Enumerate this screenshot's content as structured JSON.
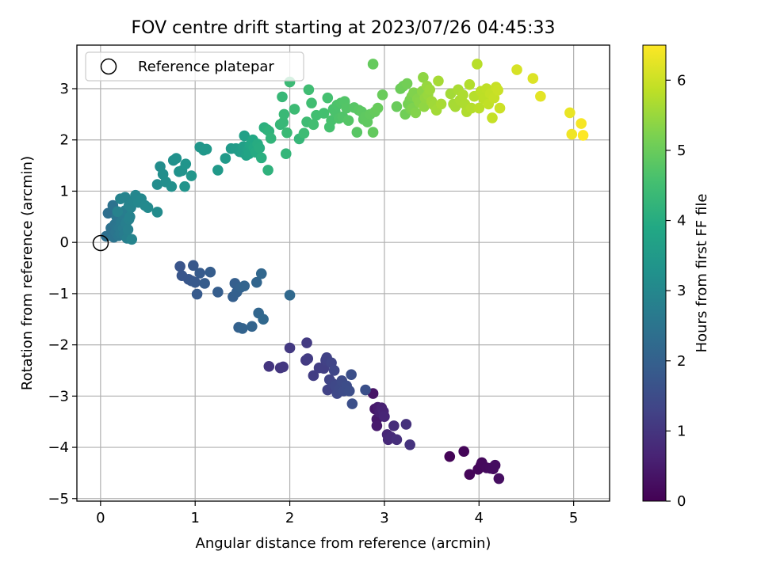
{
  "chart_data": {
    "type": "scatter",
    "title": "FOV centre drift starting at 2023/07/26 04:45:33",
    "xlabel": "Angular distance from reference (arcmin)",
    "ylabel": "Rotation from reference (arcmin)",
    "xlim": [
      -0.25,
      5.38
    ],
    "ylim": [
      -5.05,
      3.85
    ],
    "xticks": [
      0,
      1,
      2,
      3,
      4,
      5
    ],
    "yticks": [
      -5,
      -4,
      -3,
      -2,
      -1,
      0,
      1,
      2,
      3
    ],
    "grid": true,
    "legend": {
      "placement": "upper-left",
      "entries": [
        "Reference platepar"
      ]
    },
    "reference_point": {
      "x": 0,
      "y": 0
    },
    "colorbar": {
      "label": "Hours from first FF file",
      "min": 0,
      "max": 6.5,
      "ticks": [
        0,
        1,
        2,
        3,
        4,
        5,
        6
      ],
      "colormap": "viridis"
    },
    "point_series": [
      {
        "h0": 0.05,
        "h1": 0.25,
        "pts": [
          [
            3.69,
            -4.18
          ],
          [
            3.84,
            -4.08
          ],
          [
            3.9,
            -4.53
          ],
          [
            3.99,
            -4.43
          ],
          [
            4.02,
            -4.35
          ],
          [
            4.03,
            -4.3
          ],
          [
            4.08,
            -4.4
          ],
          [
            4.12,
            -4.41
          ],
          [
            4.15,
            -4.42
          ],
          [
            4.17,
            -4.35
          ],
          [
            4.21,
            -4.61
          ]
        ]
      },
      {
        "h0": 0.35,
        "h1": 0.95,
        "pts": [
          [
            2.88,
            -2.95
          ],
          [
            2.9,
            -3.25
          ],
          [
            2.92,
            -3.45
          ],
          [
            2.92,
            -3.58
          ],
          [
            2.93,
            -3.22
          ],
          [
            2.95,
            -3.32
          ],
          [
            2.97,
            -3.23
          ],
          [
            2.99,
            -3.3
          ],
          [
            3.0,
            -3.4
          ],
          [
            3.03,
            -3.75
          ],
          [
            3.04,
            -3.85
          ],
          [
            3.07,
            -3.8
          ],
          [
            3.1,
            -3.58
          ],
          [
            3.13,
            -3.85
          ],
          [
            3.23,
            -3.55
          ],
          [
            3.27,
            -3.95
          ]
        ]
      },
      {
        "h0": 1.0,
        "h1": 1.6,
        "pts": [
          [
            1.78,
            -2.42
          ],
          [
            1.9,
            -2.45
          ],
          [
            1.93,
            -2.43
          ],
          [
            2.0,
            -2.06
          ],
          [
            2.17,
            -2.3
          ],
          [
            2.18,
            -1.96
          ],
          [
            2.19,
            -2.27
          ],
          [
            2.25,
            -2.6
          ],
          [
            2.31,
            -2.45
          ],
          [
            2.36,
            -2.46
          ],
          [
            2.38,
            -2.3
          ],
          [
            2.39,
            -2.25
          ],
          [
            2.4,
            -2.88
          ],
          [
            2.42,
            -2.68
          ],
          [
            2.44,
            -2.35
          ],
          [
            2.45,
            -2.75
          ],
          [
            2.47,
            -2.5
          ],
          [
            2.48,
            -2.8
          ],
          [
            2.5,
            -2.95
          ],
          [
            2.53,
            -2.85
          ],
          [
            2.55,
            -2.7
          ],
          [
            2.57,
            -2.9
          ],
          [
            2.6,
            -2.8
          ],
          [
            2.63,
            -2.9
          ],
          [
            2.65,
            -2.58
          ],
          [
            2.66,
            -3.15
          ],
          [
            2.8,
            -2.88
          ]
        ]
      },
      {
        "h0": 1.7,
        "h1": 2.2,
        "pts": [
          [
            0.84,
            -0.47
          ],
          [
            0.86,
            -0.65
          ],
          [
            0.93,
            -0.72
          ],
          [
            0.96,
            -0.75
          ],
          [
            0.98,
            -0.45
          ],
          [
            1.0,
            -0.78
          ],
          [
            1.02,
            -1.01
          ],
          [
            1.05,
            -0.6
          ],
          [
            1.1,
            -0.8
          ],
          [
            1.16,
            -0.58
          ],
          [
            1.24,
            -0.97
          ],
          [
            1.4,
            -1.06
          ],
          [
            1.42,
            -0.8
          ],
          [
            1.44,
            -0.97
          ],
          [
            1.46,
            -1.66
          ],
          [
            1.48,
            -0.88
          ],
          [
            1.5,
            -1.68
          ],
          [
            1.52,
            -0.85
          ],
          [
            1.6,
            -1.64
          ],
          [
            1.65,
            -0.78
          ],
          [
            1.67,
            -1.38
          ],
          [
            1.7,
            -0.61
          ],
          [
            1.72,
            -1.5
          ],
          [
            2.0,
            -1.03
          ]
        ]
      },
      {
        "h0": 2.35,
        "h1": 2.9,
        "pts": [
          [
            0.06,
            0.12
          ],
          [
            0.08,
            0.57
          ],
          [
            0.1,
            0.15
          ],
          [
            0.11,
            0.28
          ],
          [
            0.13,
            0.72
          ],
          [
            0.14,
            0.1
          ],
          [
            0.15,
            0.35
          ],
          [
            0.16,
            0.2
          ],
          [
            0.17,
            0.5
          ],
          [
            0.18,
            0.3
          ],
          [
            0.19,
            0.13
          ],
          [
            0.2,
            0.28
          ],
          [
            0.21,
            0.18
          ],
          [
            0.22,
            0.4
          ],
          [
            0.23,
            0.55
          ],
          [
            0.24,
            0.28
          ],
          [
            0.25,
            0.16
          ],
          [
            0.26,
            0.62
          ],
          [
            0.27,
            0.38
          ],
          [
            0.28,
            0.08
          ],
          [
            0.29,
            0.25
          ],
          [
            0.3,
            0.45
          ],
          [
            0.31,
            0.5
          ],
          [
            0.32,
            0.68
          ],
          [
            0.33,
            0.06
          ]
        ]
      },
      {
        "h0": 2.85,
        "h1": 3.5,
        "pts": [
          [
            0.18,
            0.6
          ],
          [
            0.21,
            0.85
          ],
          [
            0.26,
            0.88
          ],
          [
            0.3,
            0.72
          ],
          [
            0.35,
            0.8
          ],
          [
            0.37,
            0.92
          ],
          [
            0.4,
            0.78
          ],
          [
            0.43,
            0.85
          ],
          [
            0.47,
            0.72
          ],
          [
            0.5,
            0.68
          ],
          [
            0.6,
            0.59
          ],
          [
            0.6,
            1.13
          ],
          [
            0.63,
            1.48
          ],
          [
            0.66,
            1.33
          ],
          [
            0.69,
            1.18
          ],
          [
            0.75,
            1.09
          ],
          [
            0.77,
            1.6
          ],
          [
            0.8,
            1.64
          ],
          [
            0.83,
            1.38
          ],
          [
            0.86,
            1.4
          ],
          [
            0.89,
            1.09
          ],
          [
            0.9,
            1.53
          ],
          [
            0.96,
            1.3
          ],
          [
            1.05,
            1.86
          ],
          [
            1.09,
            1.8
          ],
          [
            1.12,
            1.82
          ],
          [
            1.24,
            1.41
          ],
          [
            1.32,
            1.64
          ]
        ]
      },
      {
        "h0": 3.5,
        "h1": 4.3,
        "pts": [
          [
            1.38,
            1.83
          ],
          [
            1.43,
            1.83
          ],
          [
            1.47,
            1.77
          ],
          [
            1.5,
            1.76
          ],
          [
            1.51,
            1.87
          ],
          [
            1.52,
            2.08
          ],
          [
            1.54,
            1.7
          ],
          [
            1.56,
            1.8
          ],
          [
            1.57,
            1.73
          ],
          [
            1.58,
            1.9
          ],
          [
            1.6,
            1.95
          ],
          [
            1.61,
            2.0
          ],
          [
            1.62,
            1.85
          ],
          [
            1.64,
            1.76
          ],
          [
            1.66,
            1.92
          ],
          [
            1.68,
            1.84
          ],
          [
            1.7,
            1.65
          ],
          [
            1.73,
            2.24
          ],
          [
            1.76,
            2.2
          ],
          [
            1.77,
            1.41
          ],
          [
            1.78,
            2.17
          ],
          [
            1.8,
            2.03
          ],
          [
            1.96,
            1.73
          ],
          [
            2.1,
            2.02
          ]
        ]
      },
      {
        "h0": 4.3,
        "h1": 5.0,
        "pts": [
          [
            1.9,
            2.3
          ],
          [
            1.92,
            2.84
          ],
          [
            1.93,
            2.34
          ],
          [
            1.94,
            2.5
          ],
          [
            1.97,
            2.14
          ],
          [
            2.0,
            3.13
          ],
          [
            2.05,
            2.6
          ],
          [
            2.15,
            2.13
          ],
          [
            2.18,
            2.35
          ],
          [
            2.2,
            2.98
          ],
          [
            2.23,
            2.72
          ],
          [
            2.25,
            2.3
          ],
          [
            2.28,
            2.48
          ],
          [
            2.36,
            2.52
          ],
          [
            2.4,
            2.82
          ],
          [
            2.42,
            2.25
          ],
          [
            2.44,
            2.38
          ],
          [
            2.46,
            2.6
          ],
          [
            2.48,
            2.55
          ],
          [
            2.5,
            2.68
          ],
          [
            2.52,
            2.42
          ],
          [
            2.54,
            2.72
          ],
          [
            2.56,
            2.45
          ],
          [
            2.58,
            2.75
          ],
          [
            2.6,
            2.62
          ],
          [
            2.62,
            2.38
          ],
          [
            2.68,
            2.63
          ],
          [
            2.71,
            2.15
          ],
          [
            2.73,
            2.58
          ],
          [
            2.76,
            2.55
          ],
          [
            2.78,
            2.4
          ],
          [
            2.8,
            2.45
          ],
          [
            2.82,
            2.35
          ],
          [
            2.85,
            2.5
          ],
          [
            2.88,
            2.15
          ],
          [
            2.88,
            3.48
          ],
          [
            2.9,
            2.55
          ],
          [
            2.93,
            2.62
          ],
          [
            2.98,
            2.88
          ]
        ]
      },
      {
        "h0": 5.0,
        "h1": 5.65,
        "pts": [
          [
            3.13,
            2.65
          ],
          [
            3.17,
            3.0
          ],
          [
            3.2,
            3.05
          ],
          [
            3.22,
            2.5
          ],
          [
            3.24,
            3.1
          ],
          [
            3.25,
            2.7
          ],
          [
            3.27,
            2.78
          ],
          [
            3.28,
            2.6
          ],
          [
            3.29,
            2.85
          ],
          [
            3.3,
            2.62
          ],
          [
            3.31,
            2.92
          ],
          [
            3.33,
            2.53
          ],
          [
            3.35,
            2.8
          ],
          [
            3.37,
            2.73
          ],
          [
            3.4,
            2.95
          ],
          [
            3.41,
            3.22
          ],
          [
            3.42,
            2.65
          ],
          [
            3.43,
            2.82
          ],
          [
            3.45,
            3.05
          ],
          [
            3.46,
            2.88
          ],
          [
            3.48,
            2.98
          ],
          [
            3.5,
            2.75
          ],
          [
            3.52,
            2.68
          ],
          [
            3.55,
            2.58
          ],
          [
            3.57,
            3.15
          ],
          [
            3.6,
            2.7
          ]
        ]
      },
      {
        "h0": 5.6,
        "h1": 6.0,
        "pts": [
          [
            3.7,
            2.9
          ],
          [
            3.73,
            2.7
          ],
          [
            3.75,
            2.65
          ],
          [
            3.78,
            2.98
          ],
          [
            3.8,
            2.78
          ],
          [
            3.83,
            2.88
          ],
          [
            3.85,
            2.7
          ],
          [
            3.87,
            2.55
          ],
          [
            3.9,
            3.08
          ],
          [
            3.92,
            2.62
          ],
          [
            3.95,
            2.85
          ],
          [
            3.98,
            3.48
          ],
          [
            4.0,
            2.62
          ],
          [
            4.02,
            2.95
          ],
          [
            4.05,
            2.8
          ],
          [
            4.08,
            3.0
          ],
          [
            4.1,
            2.7
          ],
          [
            4.12,
            2.9
          ],
          [
            4.14,
            2.43
          ],
          [
            4.16,
            2.82
          ],
          [
            4.18,
            3.03
          ],
          [
            4.2,
            2.97
          ],
          [
            4.22,
            2.62
          ]
        ]
      },
      {
        "h0": 6.1,
        "h1": 6.5,
        "pts": [
          [
            4.4,
            3.37
          ],
          [
            4.57,
            3.2
          ],
          [
            4.65,
            2.85
          ],
          [
            4.96,
            2.53
          ],
          [
            4.98,
            2.11
          ],
          [
            5.08,
            2.32
          ],
          [
            5.1,
            2.09
          ]
        ]
      }
    ]
  }
}
